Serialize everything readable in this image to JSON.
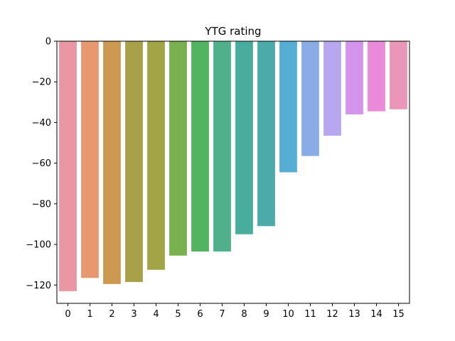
{
  "chart_data": {
    "type": "bar",
    "title": "YTG rating",
    "xlabel": "",
    "ylabel": "",
    "categories": [
      "0",
      "1",
      "2",
      "3",
      "4",
      "5",
      "6",
      "7",
      "8",
      "9",
      "10",
      "11",
      "12",
      "13",
      "14",
      "15"
    ],
    "values": [
      -123,
      -116.5,
      -119.5,
      -118.5,
      -112.5,
      -105.5,
      -103.5,
      -103.5,
      -95,
      -91,
      -64.5,
      -56.5,
      -46.5,
      -36,
      -34.5,
      -33.5
    ],
    "colors": [
      "#EA96A3",
      "#E8986E",
      "#CC9950",
      "#A9A04A",
      "#A3A448",
      "#78B14D",
      "#52B461",
      "#4FB08B",
      "#49AD9E",
      "#4CAAAB",
      "#57AED5",
      "#8AACE6",
      "#B8A6EE",
      "#D594EB",
      "#E98BD8",
      "#EA96B8"
    ],
    "ylim": [
      -129,
      0
    ],
    "yticks": [
      0,
      -20,
      -40,
      -60,
      -80,
      -100,
      -120
    ],
    "ytick_labels": [
      "0",
      "−20",
      "−40",
      "−60",
      "−80",
      "−100",
      "−120"
    ],
    "grid": false,
    "legend": "none"
  }
}
